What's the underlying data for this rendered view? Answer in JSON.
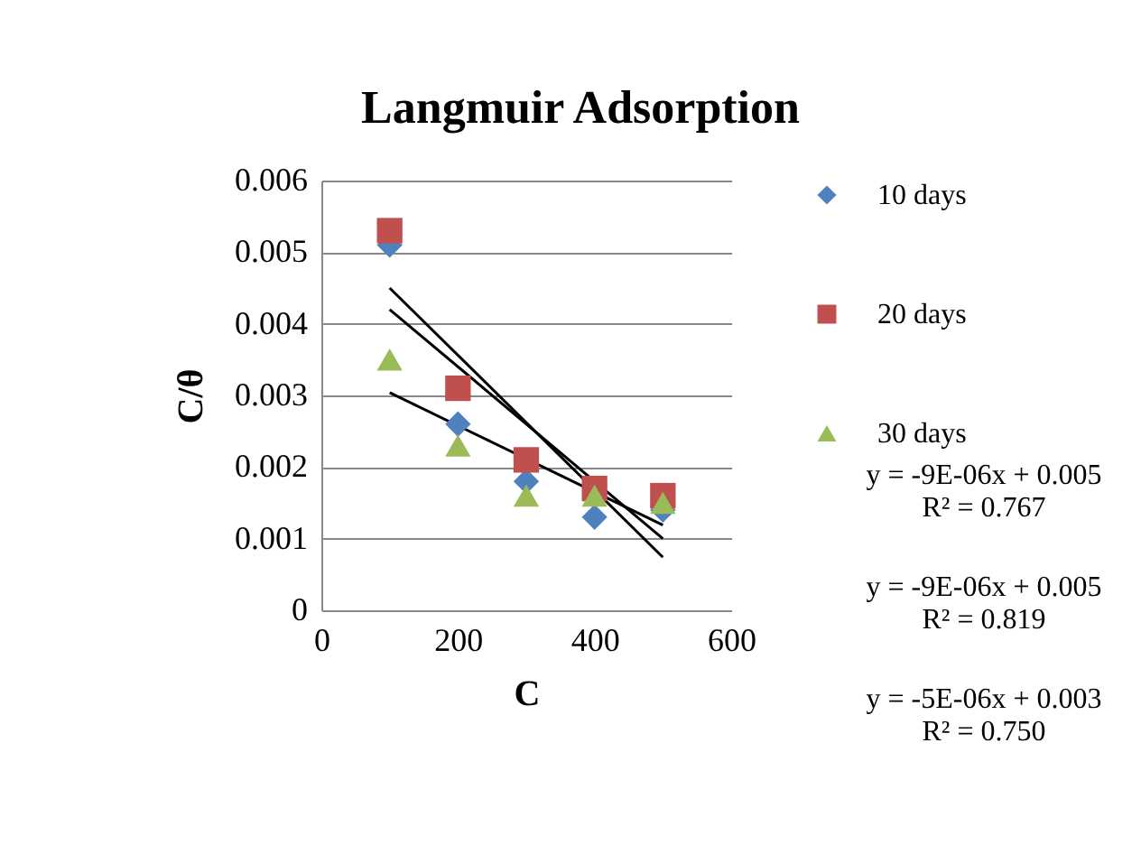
{
  "chart_data": {
    "type": "scatter",
    "title": "Langmuir Adsorption",
    "xlabel": "C",
    "ylabel": "C/θ",
    "xlim": [
      0,
      600
    ],
    "xticks": [
      0,
      200,
      400,
      600
    ],
    "ylim": [
      0,
      0.006
    ],
    "yticks": [
      0,
      0.001,
      0.002,
      0.003,
      0.004,
      0.005,
      0.006
    ],
    "grid": "y",
    "legend": "right",
    "x": [
      100,
      200,
      300,
      400,
      500
    ],
    "series": [
      {
        "name": "10 days",
        "color": "#4f81bd",
        "marker": "diamond",
        "values": [
          0.0051,
          0.0026,
          0.0018,
          0.0013,
          0.0014
        ]
      },
      {
        "name": "20 days",
        "color": "#c0504d",
        "marker": "square",
        "values": [
          0.0053,
          0.0031,
          0.0021,
          0.0017,
          0.0016
        ]
      },
      {
        "name": "30 days",
        "color": "#9bbb59",
        "marker": "triangle",
        "values": [
          0.0035,
          0.0023,
          0.0016,
          0.0016,
          0.0015
        ]
      },
      {
        "type": "line",
        "color": "#000000",
        "values": [
          0.0045,
          null,
          null,
          null,
          0.00074
        ]
      },
      {
        "type": "line",
        "color": "#000000",
        "values": [
          0.0042,
          null,
          null,
          null,
          0.001
        ]
      },
      {
        "type": "line",
        "color": "#000000",
        "values": [
          0.00304,
          null,
          null,
          null,
          0.00119
        ]
      }
    ],
    "annotations": [
      "y = -9E-06x + 0.005\nR² = 0.767",
      "y = -9E-06x + 0.005\nR² = 0.819",
      "y = -5E-06x + 0.003\nR² = 0.750"
    ]
  }
}
